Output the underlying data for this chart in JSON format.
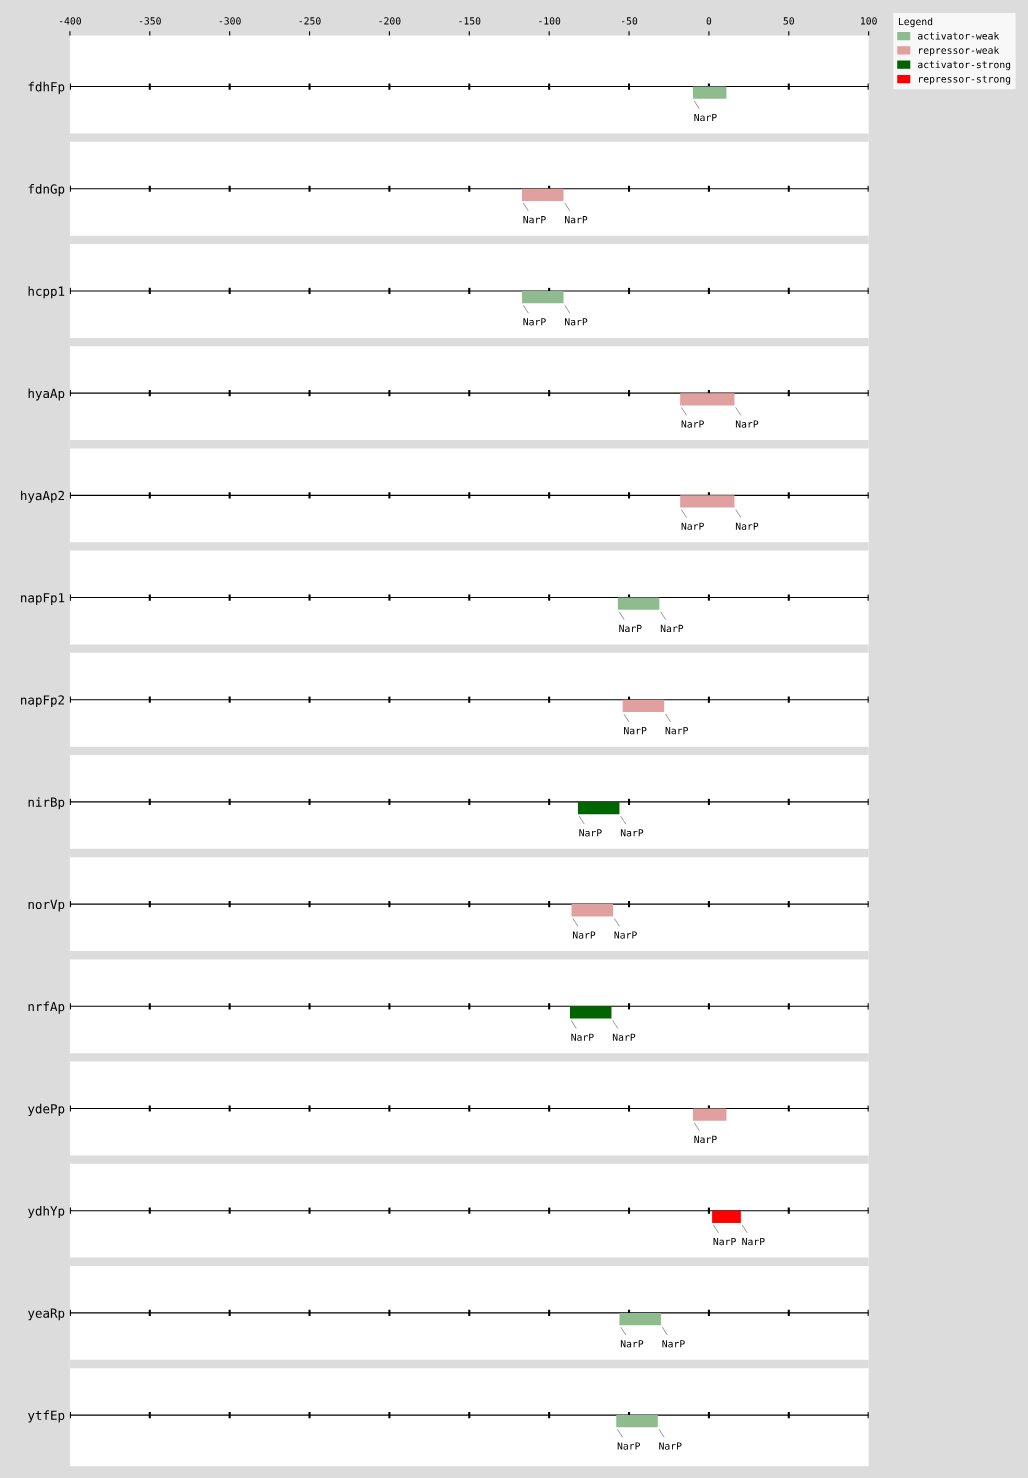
{
  "chart_data": {
    "type": "bar",
    "orientation": "horizontal",
    "legend_title": "Legend",
    "legend": "top right",
    "grid": "y",
    "categories": [
      "fdhFp",
      "fdnGp",
      "hcpp1",
      "hyaAp",
      "hyaAp2",
      "napFp1",
      "napFp2",
      "nirBp",
      "norVp",
      "nrfAp",
      "ydePp",
      "ydhYp",
      "yeaRp",
      "ytfEp"
    ],
    "xlim": [
      -400,
      100
    ],
    "xticks": [
      -400,
      -350,
      -300,
      -250,
      -200,
      -150,
      -100,
      -50,
      0,
      50,
      100
    ],
    "series": [
      {
        "name": "activator-weak",
        "color": "#8fbc8f",
        "base": [
          -10,
          null,
          -117,
          null,
          null,
          -57,
          null,
          null,
          null,
          null,
          null,
          null,
          -56,
          -58
        ],
        "values": [
          21,
          null,
          26,
          null,
          null,
          26,
          null,
          null,
          null,
          null,
          null,
          null,
          26,
          26
        ]
      },
      {
        "name": "repressor-weak",
        "color": "#e0a0a0",
        "base": [
          null,
          -117,
          null,
          -18,
          -18,
          null,
          -54,
          null,
          -86,
          null,
          -10,
          null,
          null,
          null
        ],
        "values": [
          null,
          26,
          null,
          34,
          34,
          null,
          26,
          null,
          26,
          null,
          21,
          null,
          null,
          null
        ]
      },
      {
        "name": "activator-strong",
        "color": "#006400",
        "base": [
          null,
          null,
          null,
          null,
          null,
          null,
          null,
          -82,
          null,
          -87,
          null,
          null,
          null,
          null
        ],
        "values": [
          null,
          null,
          null,
          null,
          null,
          null,
          null,
          26,
          null,
          26,
          null,
          null,
          null,
          null
        ]
      },
      {
        "name": "repressor-strong",
        "color": "#ff0000",
        "base": [
          null,
          null,
          null,
          null,
          null,
          null,
          null,
          null,
          null,
          null,
          null,
          2,
          null,
          null
        ],
        "values": [
          null,
          null,
          null,
          null,
          null,
          null,
          null,
          null,
          null,
          null,
          null,
          18,
          null,
          null
        ]
      }
    ],
    "annotations": [
      {
        "text": "NarP",
        "x": -10,
        "y": "fdhFp"
      },
      {
        "text": "NarP",
        "x": -117,
        "y": "fdnGp"
      },
      {
        "text": "NarP",
        "x": -91,
        "y": "fdnGp"
      },
      {
        "text": "NarP",
        "x": -117,
        "y": "hcpp1"
      },
      {
        "text": "NarP",
        "x": -91,
        "y": "hcpp1"
      },
      {
        "text": "NarP",
        "x": -18,
        "y": "hyaAp"
      },
      {
        "text": "NarP",
        "x": 16,
        "y": "hyaAp"
      },
      {
        "text": "NarP",
        "x": -18,
        "y": "hyaAp2"
      },
      {
        "text": "NarP",
        "x": 16,
        "y": "hyaAp2"
      },
      {
        "text": "NarP",
        "x": -57,
        "y": "napFp1"
      },
      {
        "text": "NarP",
        "x": -31,
        "y": "napFp1"
      },
      {
        "text": "NarP",
        "x": -54,
        "y": "napFp2"
      },
      {
        "text": "NarP",
        "x": -28,
        "y": "napFp2"
      },
      {
        "text": "NarP",
        "x": -82,
        "y": "nirBp"
      },
      {
        "text": "NarP",
        "x": -56,
        "y": "nirBp"
      },
      {
        "text": "NarP",
        "x": -86,
        "y": "norVp"
      },
      {
        "text": "NarP",
        "x": -60,
        "y": "norVp"
      },
      {
        "text": "NarP",
        "x": -87,
        "y": "nrfAp"
      },
      {
        "text": "NarP",
        "x": -61,
        "y": "nrfAp"
      },
      {
        "text": "NarP",
        "x": -10,
        "y": "ydePp"
      },
      {
        "text": "NarP",
        "x": 2,
        "y": "ydhYp"
      },
      {
        "text": "NarP",
        "x": 20,
        "y": "ydhYp"
      },
      {
        "text": "NarP",
        "x": -56,
        "y": "yeaRp"
      },
      {
        "text": "NarP",
        "x": -30,
        "y": "yeaRp"
      },
      {
        "text": "NarP",
        "x": -58,
        "y": "ytfEp"
      },
      {
        "text": "NarP",
        "x": -32,
        "y": "ytfEp"
      }
    ]
  }
}
